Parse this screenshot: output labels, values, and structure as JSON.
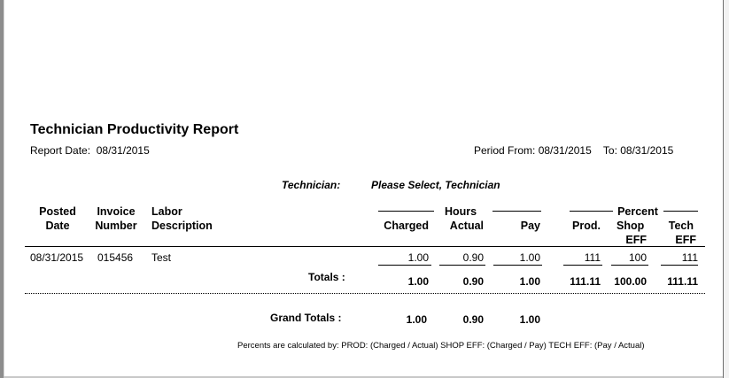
{
  "report": {
    "title": "Technician Productivity Report",
    "report_date_label": "Report Date:",
    "report_date": "08/31/2015",
    "period_from_label": "Period From:",
    "period_from": "08/31/2015",
    "period_to_label": "To:",
    "period_to": "08/31/2015",
    "technician_label": "Technician:",
    "technician_value": "Please Select, Technician"
  },
  "columns": {
    "posted_date": [
      "Posted",
      "Date"
    ],
    "invoice_number": [
      "Invoice",
      "Number"
    ],
    "labor_description": [
      "Labor",
      "Description"
    ],
    "hours_group": "Hours",
    "charged": "Charged",
    "actual": "Actual",
    "pay": "Pay",
    "percent_group": "Percent",
    "prod": "Prod.",
    "shop_eff": [
      "Shop",
      "EFF"
    ],
    "tech_eff": [
      "Tech",
      "EFF"
    ]
  },
  "rows": [
    {
      "posted_date": "08/31/2015",
      "invoice_number": "015456",
      "description": "Test",
      "charged": "1.00",
      "actual": "0.90",
      "pay": "1.00",
      "prod": "111",
      "shop_eff": "100",
      "tech_eff": "111"
    }
  ],
  "totals": {
    "label": "Totals :",
    "charged": "1.00",
    "actual": "0.90",
    "pay": "1.00",
    "prod": "111.11",
    "shop_eff": "100.00",
    "tech_eff": "111.11"
  },
  "grand_totals": {
    "label": "Grand Totals :",
    "charged": "1.00",
    "actual": "0.90",
    "pay": "1.00"
  },
  "footnote": "Percents are calculated by: PROD: (Charged / Actual) SHOP EFF: (Charged / Pay) TECH EFF: (Pay / Actual)"
}
